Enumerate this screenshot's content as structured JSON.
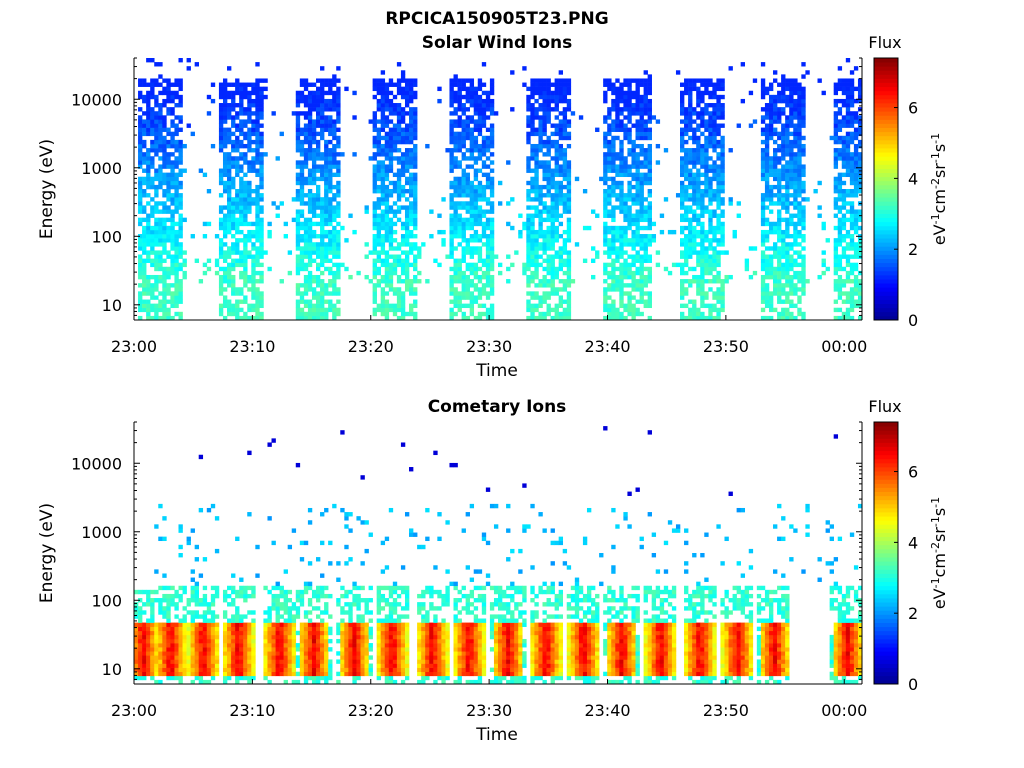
{
  "figure": {
    "title": "RPCICA150905T23.PNG"
  },
  "colors": {
    "colormap": [
      "#00008f",
      "#0000ff",
      "#0080ff",
      "#00ffff",
      "#80ff80",
      "#ffff00",
      "#ff8000",
      "#ff0000",
      "#800000"
    ]
  },
  "chart_data": [
    {
      "type": "heatmap",
      "title": "Solar Wind Ions",
      "xlabel": "Time",
      "ylabel": "Energy (eV)",
      "x_tick_labels": [
        "23:00",
        "23:10",
        "23:20",
        "23:30",
        "23:40",
        "23:50",
        "00:00"
      ],
      "x_tick_minutes": [
        0,
        10,
        20,
        30,
        40,
        50,
        60
      ],
      "xlim_minutes": [
        0,
        61.5
      ],
      "y_scale": "log",
      "ylim": [
        6,
        40000
      ],
      "y_tick_labels": [
        "10",
        "100",
        "1000",
        "10000"
      ],
      "y_tick_values": [
        10,
        100,
        1000,
        10000
      ],
      "colorbar": {
        "label": "Flux",
        "unit": "eV-1cm-2sr-1s-1",
        "range": [
          0,
          7.4
        ],
        "tick_labels": [
          "0",
          "2",
          "4",
          "6"
        ],
        "tick_values": [
          0,
          2,
          4,
          6
        ]
      },
      "pattern": "bursts",
      "burst_start_minutes": [
        0.2,
        7.2,
        13.6,
        20.2,
        26.6,
        33.2,
        39.8,
        46.2,
        52.8,
        59.2
      ],
      "burst_duration_minutes": 3.8,
      "peak_energy_eV": 20,
      "peak_flux": 3.2,
      "high_energy_flux": 1.2
    },
    {
      "type": "heatmap",
      "title": "Cometary Ions",
      "xlabel": "Time",
      "ylabel": "Energy (eV)",
      "x_tick_labels": [
        "23:00",
        "23:10",
        "23:20",
        "23:30",
        "23:40",
        "23:50",
        "00:00"
      ],
      "x_tick_minutes": [
        0,
        10,
        20,
        30,
        40,
        50,
        60
      ],
      "xlim_minutes": [
        0,
        61.5
      ],
      "y_scale": "log",
      "ylim": [
        6,
        40000
      ],
      "y_tick_labels": [
        "10",
        "100",
        "1000",
        "10000"
      ],
      "y_tick_values": [
        10,
        100,
        1000,
        10000
      ],
      "colorbar": {
        "label": "Flux",
        "unit": "eV-1cm-2sr-1s-1",
        "range": [
          0,
          7.4
        ],
        "tick_labels": [
          "0",
          "2",
          "4",
          "6"
        ],
        "tick_values": [
          0,
          2,
          4,
          6
        ]
      },
      "pattern": "pulses",
      "pulse_center_minutes": [
        0.8,
        3.1,
        5.9,
        8.8,
        12.3,
        15.2,
        18.6,
        21.8,
        25.2,
        28.3,
        31.6,
        34.8,
        38.0,
        41.2,
        44.5,
        47.8,
        51.0,
        54.1,
        60.3
      ],
      "band_energy_eV": [
        15,
        45
      ],
      "peak_flux": 6.6,
      "background_flux": 2.3
    }
  ]
}
